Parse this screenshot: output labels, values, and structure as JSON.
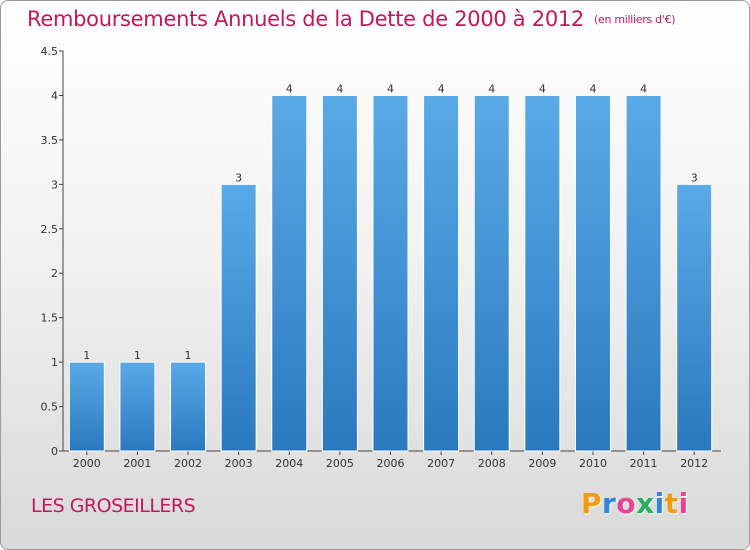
{
  "title": "Remboursements Annuels de la Dette de 2000 à 2012",
  "unit": "(en milliers d'€)",
  "commune": "LES GROSEILLERS",
  "logo": {
    "letters": [
      "P",
      "r",
      "o",
      "x",
      "i",
      "t",
      "i"
    ],
    "colors": [
      "#f39c12",
      "#2e86de",
      "#e84393",
      "#27ae60",
      "#2e86de",
      "#f39c12",
      "#e84393"
    ]
  },
  "colors": {
    "bar": "#3a8fd6",
    "bar_light": "#5aaae8",
    "title": "#c2185b"
  },
  "chart_data": {
    "type": "bar",
    "title": "Remboursements Annuels de la Dette de 2000 à 2012",
    "categories": [
      "2000",
      "2001",
      "2002",
      "2003",
      "2004",
      "2005",
      "2006",
      "2007",
      "2008",
      "2009",
      "2010",
      "2011",
      "2012"
    ],
    "values": [
      1,
      1,
      1,
      3,
      4,
      4,
      4,
      4,
      4,
      4,
      4,
      4,
      3
    ],
    "data_labels": [
      "1",
      "1",
      "1",
      "3",
      "4",
      "4",
      "4",
      "4",
      "4",
      "4",
      "4",
      "4",
      "3"
    ],
    "ylim": [
      0,
      4.5
    ],
    "yticks": [
      0,
      0.5,
      1,
      1.5,
      2,
      2.5,
      3,
      3.5,
      4,
      4.5
    ],
    "ytick_labels": [
      "0",
      "0.5",
      "1",
      "1.5",
      "2",
      "2.5",
      "3",
      "3.5",
      "4",
      "4.5"
    ],
    "xlabel": "",
    "ylabel": "",
    "grid": false,
    "legend": "none"
  }
}
